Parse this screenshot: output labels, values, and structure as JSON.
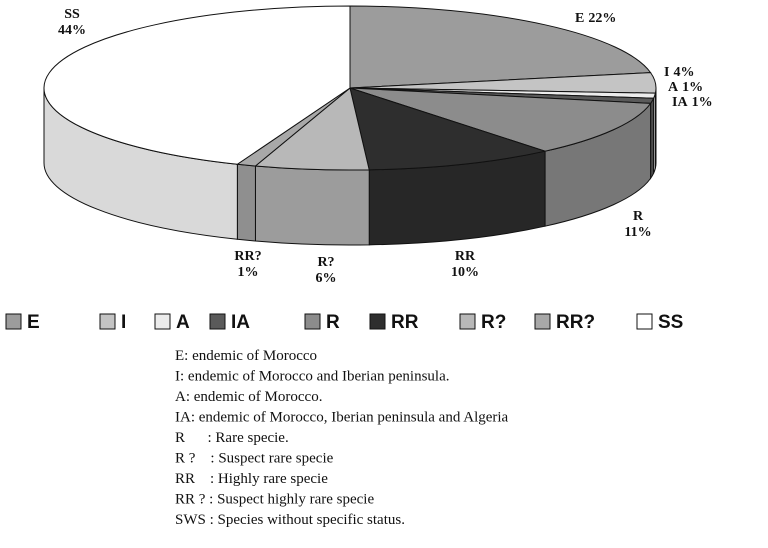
{
  "chart_data": {
    "type": "pie",
    "three_d": true,
    "categories": [
      "E",
      "I",
      "A",
      "IA",
      "R",
      "RR",
      "R?",
      "RR?",
      "SS"
    ],
    "values": [
      22,
      4,
      1,
      1,
      11,
      10,
      6,
      1,
      44
    ],
    "value_labels": [
      "22%",
      "4%",
      "1%",
      "1%",
      "11%",
      "10%",
      "6%",
      "1%",
      "44%"
    ],
    "colors": [
      "#9c9c9c",
      "#c4c4c4",
      "#ececec",
      "#5a5a5a",
      "#8c8c8c",
      "#2e2e2e",
      "#b8b8b8",
      "#a8a8a8",
      "#ffffff"
    ],
    "legend": true,
    "annotations": [
      "E: endemic of Morocco",
      "I: endemic of Morocco and Iberian peninsula.",
      "A: endemic of Morocco.",
      "IA: endemic of Morocco, Iberian peninsula and Algeria",
      "R      : Rare specie.",
      "R ?    : Suspect rare specie",
      "RR    : Highly rare specie",
      "RR ? : Suspect highly rare specie",
      "SWS : Species without specific status."
    ]
  }
}
